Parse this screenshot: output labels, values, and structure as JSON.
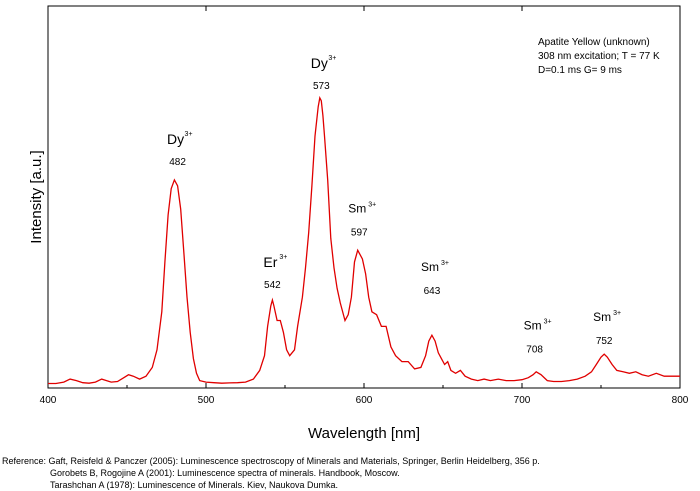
{
  "chart_data": {
    "type": "line",
    "xlabel": "Wavelength [nm]",
    "ylabel": "Intensity [a.u.]",
    "xlim": [
      400,
      800
    ],
    "ylim": [
      0,
      1.0
    ],
    "x_ticks": [
      400,
      500,
      600,
      700,
      800
    ],
    "x_tick_labels": [
      "400",
      "500",
      "600",
      "700",
      "800"
    ],
    "grid": false,
    "line_color": "#e00000",
    "info_box": [
      "Apatite Yellow (unknown)",
      "308 nm excitation; T = 77 K",
      "D=0.1 ms G= 9 ms"
    ],
    "annotations": [
      {
        "ion": "Dy",
        "charge": "3+",
        "wavelength": "482",
        "x": 482,
        "y": 0.72
      },
      {
        "ion": "Er",
        "charge": "3+",
        "wavelength": "542",
        "x": 542,
        "y": 0.3
      },
      {
        "ion": "Dy",
        "charge": "3+",
        "wavelength": "573",
        "x": 573,
        "y": 0.98
      },
      {
        "ion": "Sm",
        "charge": "3+",
        "wavelength": "597",
        "x": 597,
        "y": 0.48
      },
      {
        "ion": "Sm",
        "charge": "3+",
        "wavelength": "643",
        "x": 643,
        "y": 0.28
      },
      {
        "ion": "Sm",
        "charge": "3+",
        "wavelength": "708",
        "x": 708,
        "y": 0.08
      },
      {
        "ion": "Sm",
        "charge": "3+",
        "wavelength": "752",
        "x": 752,
        "y": 0.11
      }
    ],
    "series": [
      {
        "x": [
          400,
          405,
          410,
          414,
          418,
          422,
          426,
          430,
          434,
          437,
          440,
          444,
          448,
          451,
          454,
          458,
          462,
          466,
          469,
          472,
          474,
          476,
          478,
          480,
          482,
          484,
          486,
          488,
          490,
          492,
          494,
          496,
          500,
          505,
          510,
          515,
          520,
          525,
          530,
          534,
          537,
          539,
          541,
          542,
          543,
          545,
          547,
          549,
          551,
          553,
          556,
          558,
          561,
          563,
          565,
          567,
          569,
          571,
          572,
          573,
          574,
          575,
          577,
          579,
          581,
          583,
          585,
          588,
          590,
          592,
          594,
          596,
          597,
          599,
          601,
          603,
          605,
          608,
          611,
          614,
          617,
          620,
          624,
          628,
          632,
          636,
          639,
          641,
          643,
          645,
          647,
          649,
          651,
          653,
          655,
          658,
          661,
          664,
          668,
          672,
          676,
          680,
          685,
          690,
          695,
          700,
          704,
          707,
          709,
          712,
          716,
          720,
          725,
          730,
          735,
          740,
          744,
          747,
          750,
          752,
          754,
          757,
          760,
          764,
          768,
          772,
          776,
          780,
          785,
          790,
          795,
          800
        ],
        "y": [
          0.005,
          0.005,
          0.01,
          0.02,
          0.015,
          0.008,
          0.006,
          0.01,
          0.02,
          0.015,
          0.01,
          0.012,
          0.025,
          0.035,
          0.03,
          0.02,
          0.03,
          0.06,
          0.12,
          0.25,
          0.42,
          0.58,
          0.67,
          0.7,
          0.68,
          0.6,
          0.45,
          0.3,
          0.18,
          0.09,
          0.04,
          0.015,
          0.01,
          0.008,
          0.006,
          0.007,
          0.008,
          0.01,
          0.02,
          0.05,
          0.1,
          0.2,
          0.27,
          0.29,
          0.27,
          0.22,
          0.22,
          0.18,
          0.12,
          0.1,
          0.12,
          0.2,
          0.3,
          0.4,
          0.52,
          0.68,
          0.85,
          0.95,
          0.98,
          0.97,
          0.92,
          0.85,
          0.7,
          0.5,
          0.4,
          0.33,
          0.28,
          0.22,
          0.24,
          0.3,
          0.42,
          0.46,
          0.45,
          0.43,
          0.38,
          0.3,
          0.25,
          0.24,
          0.2,
          0.2,
          0.13,
          0.1,
          0.08,
          0.08,
          0.055,
          0.06,
          0.1,
          0.15,
          0.17,
          0.15,
          0.11,
          0.09,
          0.07,
          0.08,
          0.05,
          0.04,
          0.05,
          0.03,
          0.02,
          0.015,
          0.02,
          0.015,
          0.02,
          0.015,
          0.015,
          0.018,
          0.025,
          0.035,
          0.045,
          0.035,
          0.015,
          0.012,
          0.012,
          0.015,
          0.02,
          0.03,
          0.045,
          0.07,
          0.095,
          0.105,
          0.095,
          0.07,
          0.05,
          0.045,
          0.04,
          0.045,
          0.035,
          0.03,
          0.04,
          0.03,
          0.03,
          0.03
        ]
      }
    ]
  },
  "references": [
    "Reference: Gaft, Reisfeld & Panczer (2005): Luminescence spectroscopy of Minerals and Materials, Springer, Berlin Heidelberg, 356 p.",
    "Gorobets B, Rogojine A (2001): Luminescence spectra of minerals. Handbook, Moscow.",
    "Tarashchan A (1978): Luminescence of Minerals. Kiev, Naukova Dumka."
  ]
}
